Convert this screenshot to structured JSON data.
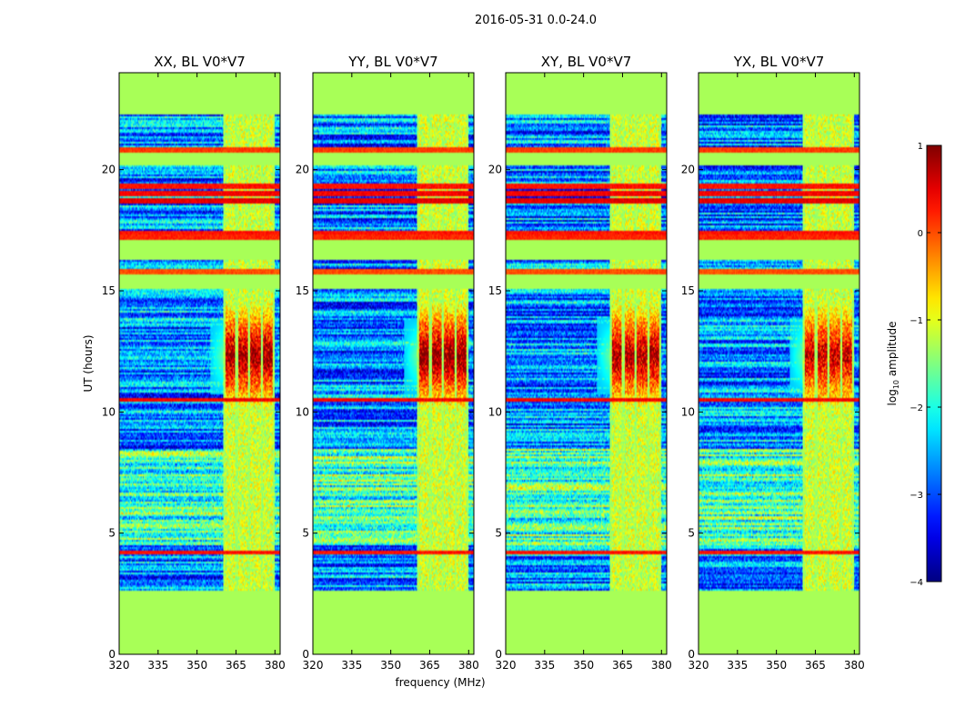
{
  "chart_data": {
    "type": "heatmap",
    "suptitle": "2016-05-31 0.0-24.0",
    "xlabel": "frequency (MHz)",
    "ylabel": "UT (hours)",
    "xlim": [
      320,
      382
    ],
    "ylim": [
      0,
      24
    ],
    "xticks": [
      "320",
      "335",
      "350",
      "365",
      "380"
    ],
    "yticks": [
      "0",
      "5",
      "10",
      "15",
      "20"
    ],
    "panels": [
      {
        "title": "XX, BL V0*V7"
      },
      {
        "title": "YY, BL V0*V7"
      },
      {
        "title": "XY, BL V0*V7"
      },
      {
        "title": "YX, BL V0*V7"
      }
    ],
    "colorbar": {
      "label": "log",
      "label_sub": "10",
      "label_rest": " amplitude",
      "range": [
        -4,
        1
      ],
      "ticks": [
        "1",
        "0",
        "−1",
        "−2",
        "−3",
        "−4"
      ]
    },
    "flagged_value": -1.3,
    "flagged_ut_ranges": [
      [
        0,
        2.6
      ],
      [
        22.3,
        24
      ],
      [
        20.2,
        20.7
      ],
      [
        16.3,
        17.0
      ],
      [
        15.1,
        15.7
      ]
    ],
    "flagged_channel_bands": [
      [
        360,
        380
      ]
    ],
    "rfi_ut_lines": [
      4.2,
      10.5,
      15.8,
      17.2,
      17.4,
      18.7,
      19.0,
      19.3,
      20.8
    ],
    "rfi_ut_bands_value": [
      0.3,
      0.4,
      0.0,
      0.2,
      0.3,
      0.5,
      0.4,
      0.3,
      0.1
    ],
    "burst_ut_center": 12.3,
    "burst_peak_value": [
      0.6,
      0.7,
      0.5,
      0.3
    ]
  }
}
